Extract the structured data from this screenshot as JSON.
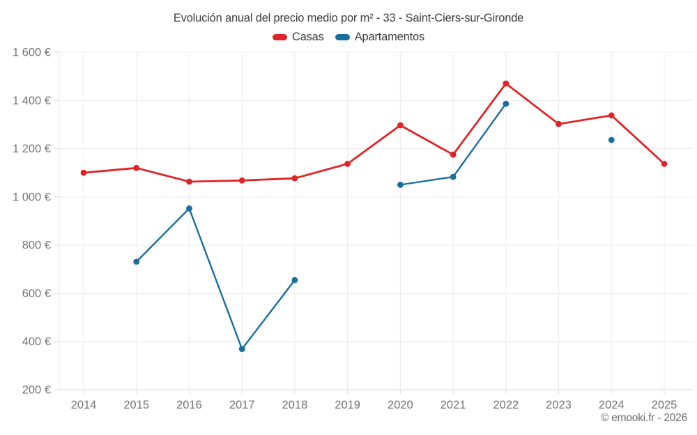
{
  "title": "Evolución anual del precio medio por m² - 33 - Saint-Ciers-sur-Gironde",
  "legend": {
    "items": [
      {
        "label": "Casas",
        "color": "#de2426"
      },
      {
        "label": "Apartamentos",
        "color": "#1a6d9d"
      }
    ]
  },
  "copyright": "© emooki.fr - 2026",
  "chart_data": {
    "type": "line",
    "title": "Evolución anual del precio medio por m² - 33 - Saint-Ciers-sur-Gironde",
    "categories": [
      "2014",
      "2015",
      "2016",
      "2017",
      "2018",
      "2019",
      "2020",
      "2021",
      "2022",
      "2023",
      "2024",
      "2025"
    ],
    "series": [
      {
        "name": "Casas",
        "color": "#de2426",
        "values": [
          1100,
          1120,
          1063,
          1068,
          1077,
          1137,
          1297,
          1175,
          1470,
          1302,
          1338,
          1137
        ]
      },
      {
        "name": "Apartamentos",
        "color": "#1a6d9d",
        "values": [
          null,
          731,
          952,
          369,
          655,
          null,
          1050,
          1083,
          1386,
          null,
          1236,
          null
        ]
      }
    ],
    "xlabel": "",
    "ylabel": "",
    "ylim": [
      200,
      1600
    ],
    "yticks": [
      {
        "value": 200,
        "label": "200 €"
      },
      {
        "value": 400,
        "label": "400 €"
      },
      {
        "value": 600,
        "label": "600 €"
      },
      {
        "value": 800,
        "label": "800 €"
      },
      {
        "value": 1000,
        "label": "1 000 €"
      },
      {
        "value": 1200,
        "label": "1 200 €"
      },
      {
        "value": 1400,
        "label": "1 400 €"
      },
      {
        "value": 1600,
        "label": "1 600 €"
      }
    ],
    "grid": true,
    "legend_position": "top",
    "marker": "circle"
  }
}
